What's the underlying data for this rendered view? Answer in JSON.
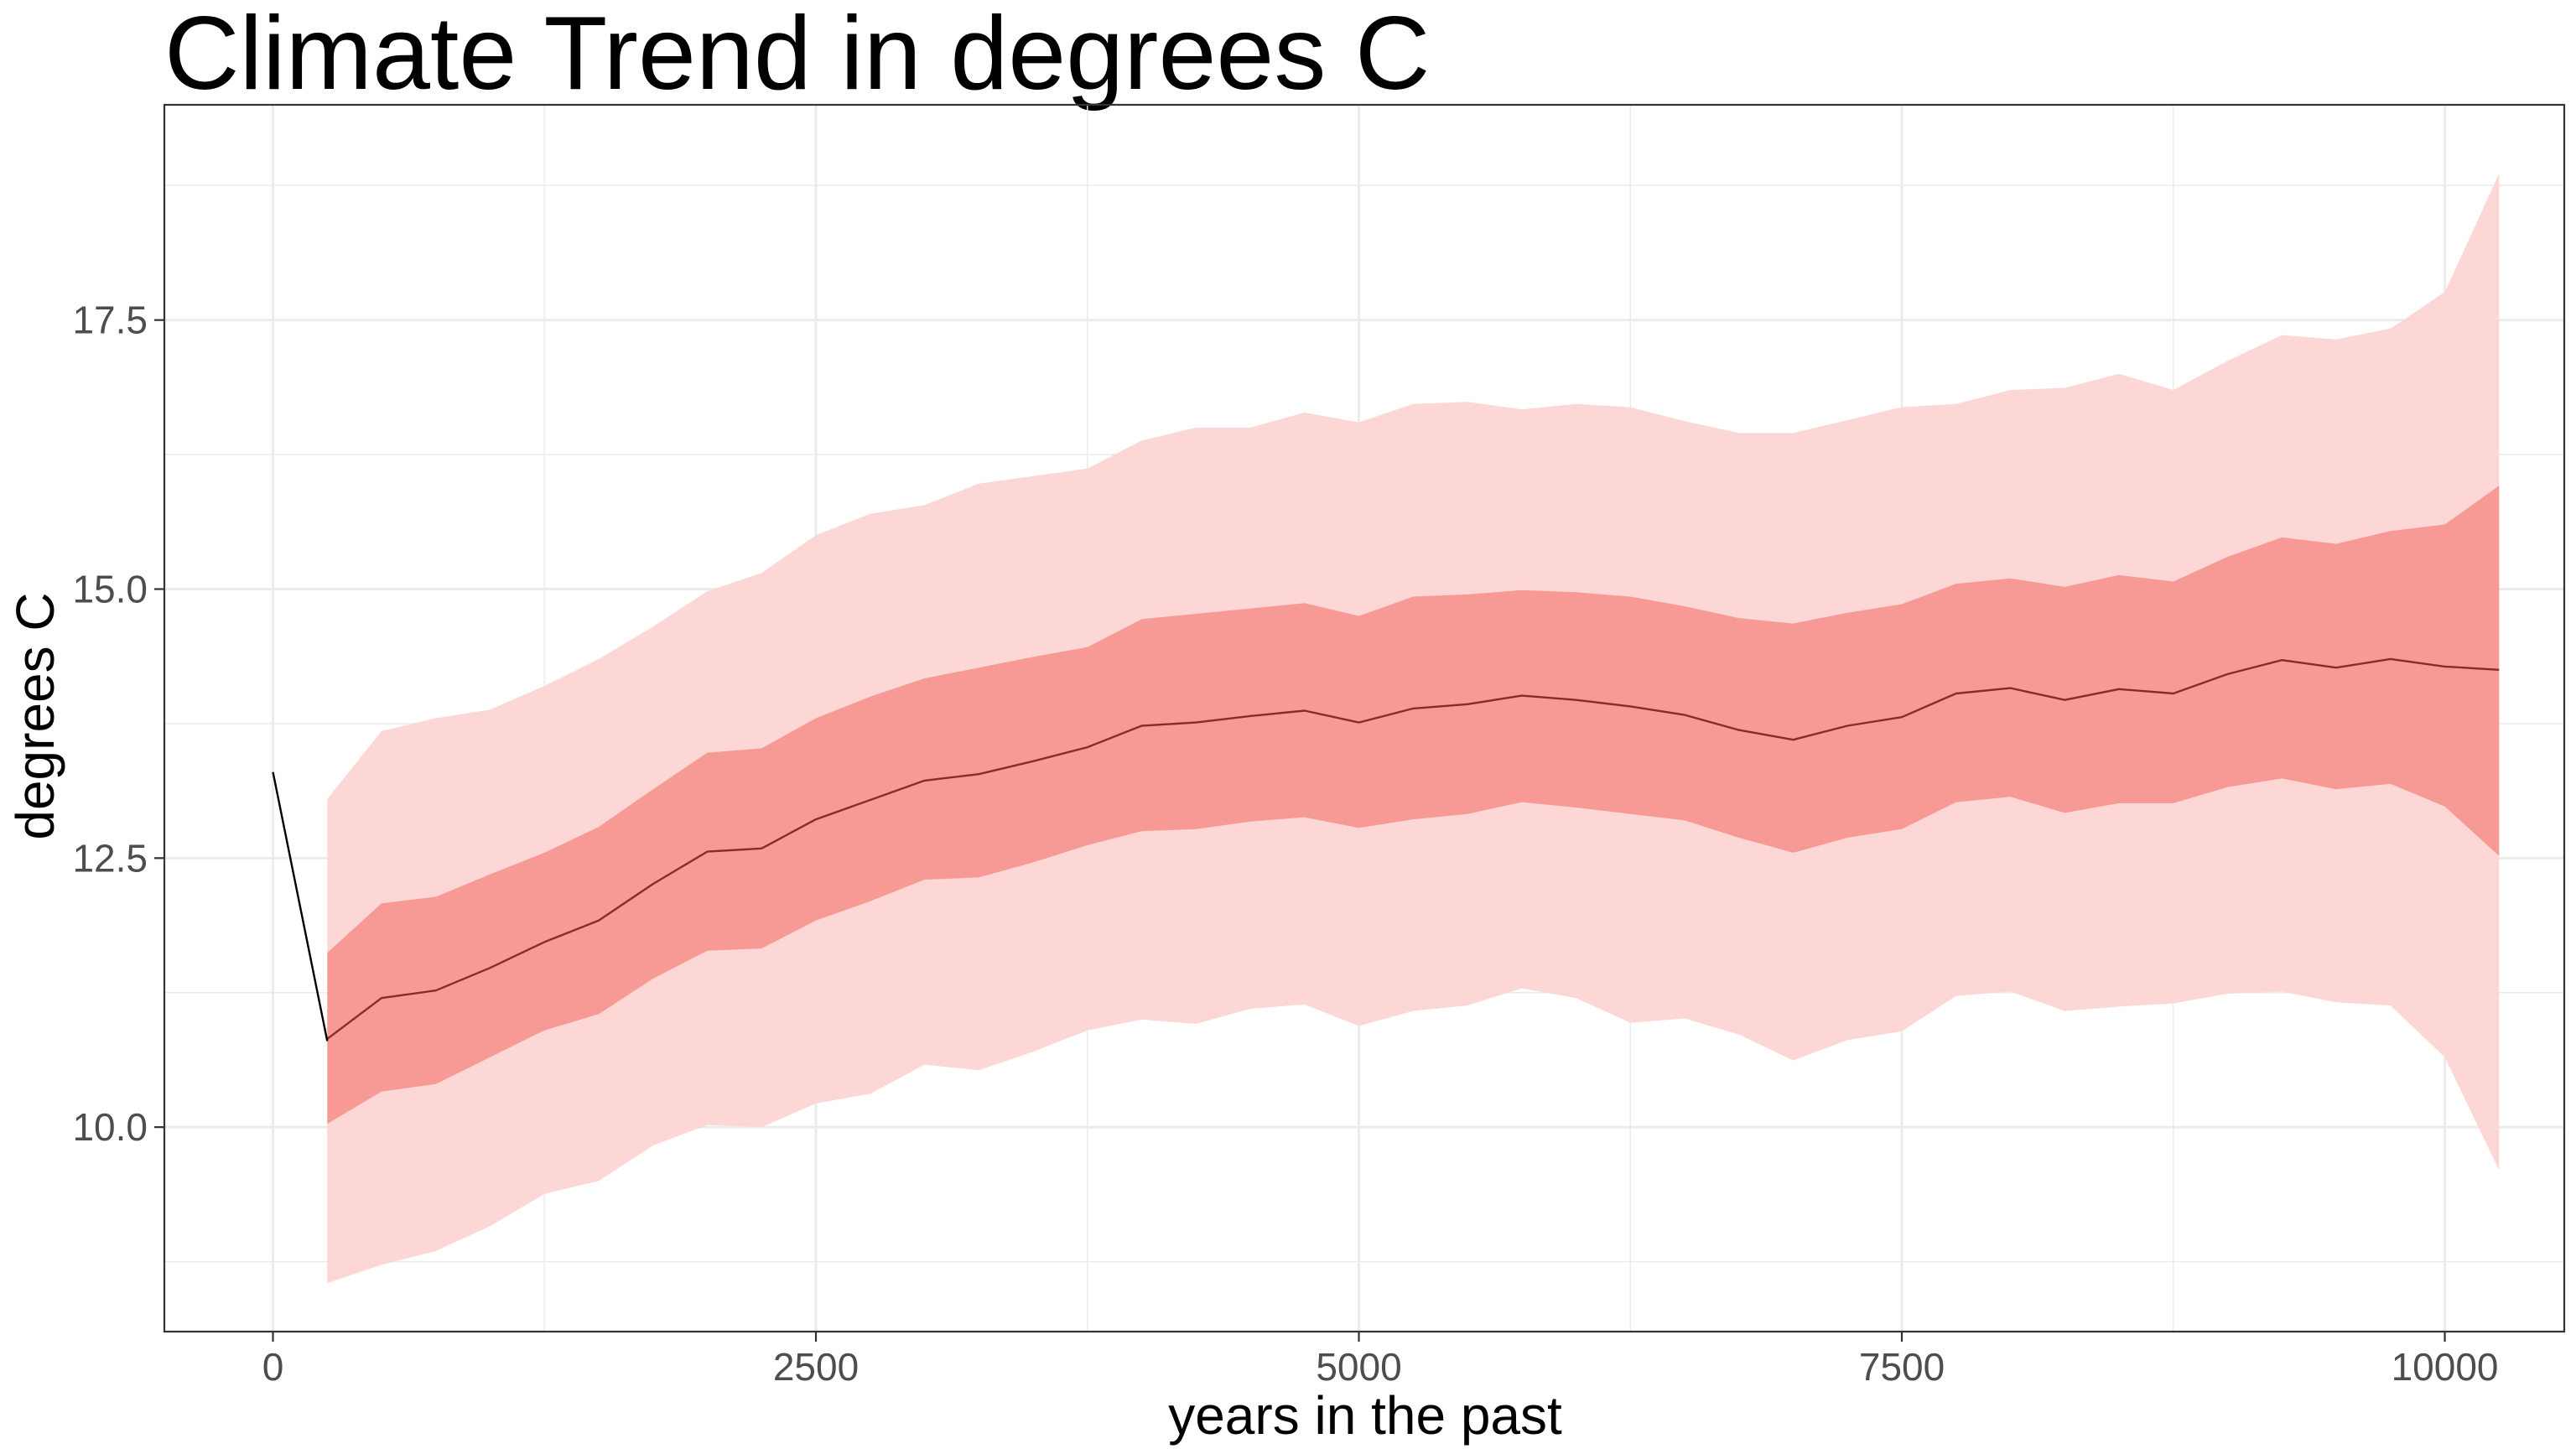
{
  "chart_data": {
    "type": "area",
    "title": "Climate Trend in degrees C",
    "xlabel": "years in the past",
    "ylabel": "degrees C",
    "xlim": [
      -500,
      10550
    ],
    "ylim": [
      8.1,
      19.5
    ],
    "x_ticks": [
      0,
      2500,
      5000,
      7500,
      10000
    ],
    "x_tick_labels": [
      "0",
      "2500",
      "5000",
      "7500",
      "10000"
    ],
    "y_ticks": [
      10.0,
      12.5,
      15.0,
      17.5
    ],
    "y_tick_labels": [
      "10.0",
      "12.5",
      "15.0",
      "17.5"
    ],
    "grid": true,
    "legend": "none",
    "colors": {
      "outer_band": "#fcd7d6",
      "inner_band": "#f79a96",
      "mean_line": "#8b2a2a",
      "recent_line": "#000000",
      "grid": "#ebebeb",
      "panel_border": "#333333",
      "tick_text": "#4d4d4d"
    },
    "recent_segment": {
      "x": [
        0,
        250
      ],
      "y": [
        13.3,
        10.8
      ]
    },
    "series": [
      {
        "x": [
          250,
          500,
          750,
          1000,
          1250,
          1500,
          1750,
          2000,
          2250,
          2500,
          2750,
          3000,
          3250,
          3500,
          3750,
          4000,
          4250,
          4500,
          4750,
          5000,
          5250,
          5500,
          5750,
          6000,
          6250,
          6500,
          6750,
          7000,
          7250,
          7500,
          7750,
          8000,
          8250,
          8500,
          8750,
          9000,
          9250,
          9500,
          9750,
          10000,
          10250
        ],
        "mean": [
          10.82,
          11.2,
          11.27,
          11.48,
          11.72,
          11.92,
          12.26,
          12.56,
          12.59,
          12.86,
          13.04,
          13.22,
          13.28,
          13.4,
          13.53,
          13.73,
          13.76,
          13.82,
          13.87,
          13.76,
          13.89,
          13.93,
          14.01,
          13.97,
          13.91,
          13.83,
          13.69,
          13.6,
          13.73,
          13.81,
          14.03,
          14.08,
          13.97,
          14.07,
          14.03,
          14.21,
          14.34,
          14.27,
          14.35,
          14.28,
          14.25
        ],
        "inner_low": [
          10.03,
          10.33,
          10.4,
          10.65,
          10.9,
          11.05,
          11.38,
          11.64,
          11.66,
          11.92,
          12.1,
          12.3,
          12.32,
          12.46,
          12.62,
          12.75,
          12.77,
          12.84,
          12.88,
          12.78,
          12.86,
          12.91,
          13.02,
          12.97,
          12.91,
          12.85,
          12.69,
          12.55,
          12.69,
          12.77,
          13.02,
          13.07,
          12.92,
          13.01,
          13.01,
          13.16,
          13.24,
          13.14,
          13.19,
          12.98,
          12.52
        ],
        "inner_high": [
          11.62,
          12.08,
          12.14,
          12.35,
          12.55,
          12.79,
          13.14,
          13.48,
          13.52,
          13.8,
          14.0,
          14.17,
          14.27,
          14.37,
          14.46,
          14.72,
          14.77,
          14.82,
          14.87,
          14.75,
          14.93,
          14.95,
          14.99,
          14.97,
          14.93,
          14.84,
          14.73,
          14.68,
          14.78,
          14.86,
          15.05,
          15.1,
          15.02,
          15.13,
          15.07,
          15.3,
          15.48,
          15.42,
          15.54,
          15.6,
          15.96
        ]
      },
      {
        "x": [
          250,
          500,
          750,
          1000,
          1250,
          1500,
          1750,
          2000,
          2250,
          2500,
          2750,
          3000,
          3250,
          3500,
          3750,
          4000,
          4250,
          4500,
          4750,
          5000,
          5250,
          5500,
          5750,
          6000,
          6250,
          6500,
          6750,
          7000,
          7250,
          7500,
          7750,
          8000,
          8250,
          8500,
          8750,
          9000,
          9250,
          9500,
          9750,
          10000,
          10250
        ],
        "outer_low": [
          8.55,
          8.72,
          8.85,
          9.08,
          9.38,
          9.5,
          9.83,
          10.02,
          10.0,
          10.22,
          10.31,
          10.58,
          10.53,
          10.7,
          10.9,
          11.0,
          10.96,
          11.1,
          11.14,
          10.94,
          11.08,
          11.13,
          11.29,
          11.2,
          10.97,
          11.01,
          10.86,
          10.62,
          10.81,
          10.89,
          11.22,
          11.26,
          11.08,
          11.12,
          11.15,
          11.24,
          11.26,
          11.16,
          11.13,
          10.65,
          9.6
        ],
        "outer_high": [
          13.05,
          13.68,
          13.8,
          13.88,
          14.1,
          14.35,
          14.65,
          14.98,
          15.15,
          15.5,
          15.7,
          15.78,
          15.98,
          16.05,
          16.12,
          16.38,
          16.5,
          16.5,
          16.64,
          16.55,
          16.72,
          16.74,
          16.67,
          16.72,
          16.69,
          16.56,
          16.45,
          16.45,
          16.57,
          16.69,
          16.72,
          16.85,
          16.87,
          17.0,
          16.85,
          17.12,
          17.36,
          17.32,
          17.42,
          17.76,
          18.86
        ]
      }
    ]
  }
}
